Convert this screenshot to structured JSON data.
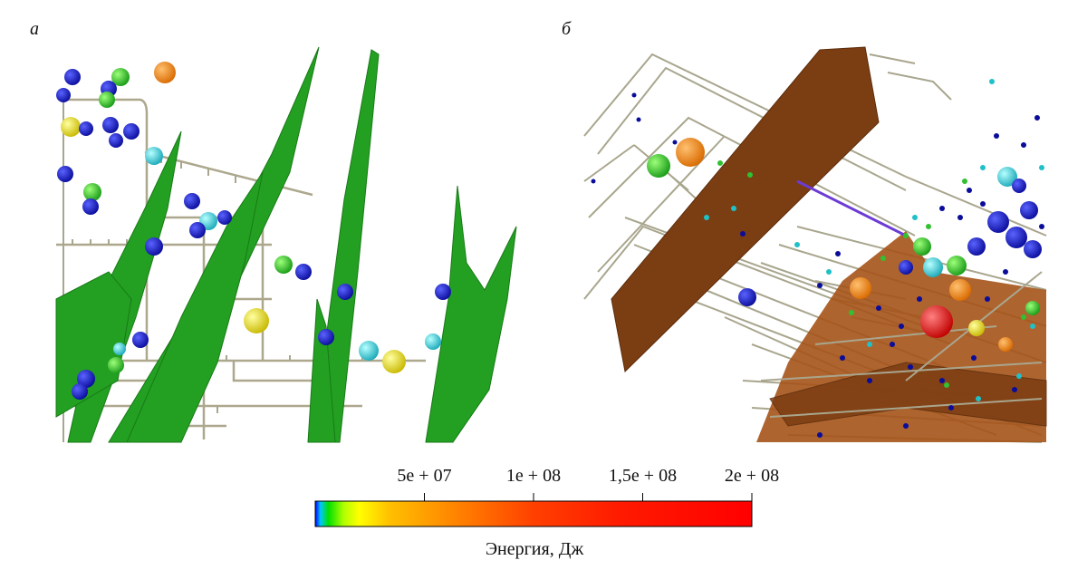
{
  "panels": [
    {
      "label": "а"
    },
    {
      "label": "б"
    }
  ],
  "colorbar": {
    "label": "Энергия, Дж",
    "lim": [
      0,
      200000000
    ],
    "ticks": [
      {
        "value": 50000000,
        "label": "5e + 07"
      },
      {
        "value": 100000000,
        "label": "1e + 08"
      },
      {
        "value": 150000000,
        "label": "1,5e + 08"
      },
      {
        "value": 200000000,
        "label": "2e + 08"
      }
    ]
  }
}
